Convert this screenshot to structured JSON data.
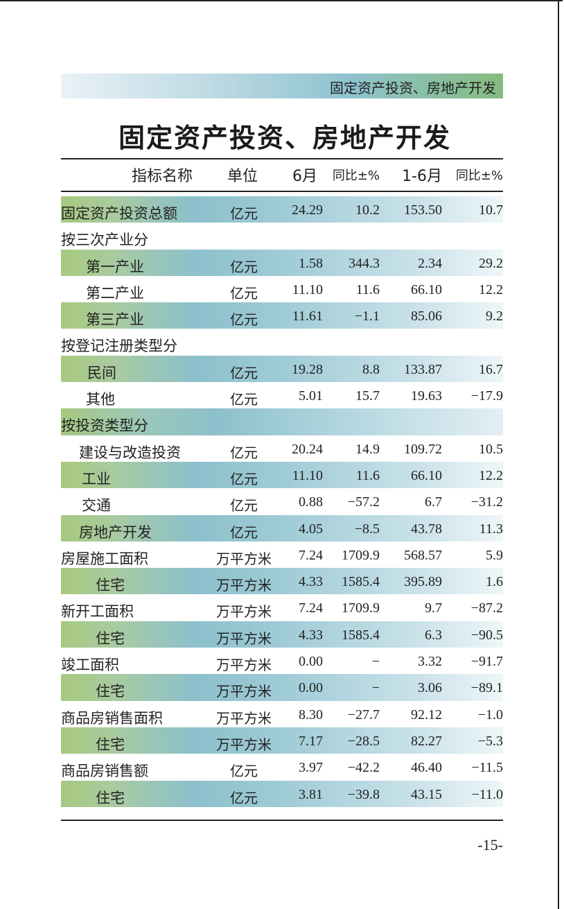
{
  "header": {
    "section": "固定资产投资、房地产开发"
  },
  "page_title": "固定资产投资、房地产开发",
  "columns": {
    "name": "指标名称",
    "unit": "单位",
    "month": "6月",
    "month_yoy": "同比±%",
    "cumulative": "1-6月",
    "cumulative_yoy": "同比±%"
  },
  "rows": [
    {
      "name": "固定资产投资总额",
      "unit": "亿元",
      "m6": "24.29",
      "yoy1": "10.2",
      "cum": "153.50",
      "yoy2": "10.7",
      "indent": 0,
      "style": "hdr",
      "shaded": true
    },
    {
      "name": "按三次产业分",
      "unit": "",
      "m6": "",
      "yoy1": "",
      "cum": "",
      "yoy2": "",
      "indent": 0,
      "style": "cat",
      "shaded": false
    },
    {
      "name": "第一产业",
      "unit": "亿元",
      "m6": "1.58",
      "yoy1": "344.3",
      "cum": "2.34",
      "yoy2": "29.2",
      "indent": 36,
      "style": "item",
      "shaded": true
    },
    {
      "name": "第二产业",
      "unit": "亿元",
      "m6": "11.10",
      "yoy1": "11.6",
      "cum": "66.10",
      "yoy2": "12.2",
      "indent": 36,
      "style": "item",
      "shaded": false
    },
    {
      "name": "第三产业",
      "unit": "亿元",
      "m6": "11.61",
      "yoy1": "−1.1",
      "cum": "85.06",
      "yoy2": "9.2",
      "indent": 36,
      "style": "item",
      "shaded": true
    },
    {
      "name": "按登记注册类型分",
      "unit": "",
      "m6": "",
      "yoy1": "",
      "cum": "",
      "yoy2": "",
      "indent": 0,
      "style": "cat",
      "shaded": false
    },
    {
      "name": "民间",
      "unit": "亿元",
      "m6": "19.28",
      "yoy1": "8.8",
      "cum": "133.87",
      "yoy2": "16.7",
      "indent": 38,
      "style": "item",
      "shaded": true
    },
    {
      "name": "其他",
      "unit": "亿元",
      "m6": "5.01",
      "yoy1": "15.7",
      "cum": "19.63",
      "yoy2": "−17.9",
      "indent": 36,
      "style": "item",
      "shaded": false
    },
    {
      "name": "按投资类型分",
      "unit": "",
      "m6": "",
      "yoy1": "",
      "cum": "",
      "yoy2": "",
      "indent": 0,
      "style": "cat",
      "shaded": true,
      "section": true
    },
    {
      "name": "建设与改造投资",
      "unit": "亿元",
      "m6": "20.24",
      "yoy1": "14.9",
      "cum": "109.72",
      "yoy2": "10.5",
      "indent": 26,
      "style": "item",
      "shaded": false
    },
    {
      "name": "工业",
      "unit": "亿元",
      "m6": "11.10",
      "yoy1": "11.6",
      "cum": "66.10",
      "yoy2": "12.2",
      "indent": 30,
      "style": "item",
      "shaded": true
    },
    {
      "name": "交通",
      "unit": "亿元",
      "m6": "0.88",
      "yoy1": "−57.2",
      "cum": "6.7",
      "yoy2": "−31.2",
      "indent": 30,
      "style": "item",
      "shaded": false
    },
    {
      "name": "房地产开发",
      "unit": "亿元",
      "m6": "4.05",
      "yoy1": "−8.5",
      "cum": "43.78",
      "yoy2": "11.3",
      "indent": 26,
      "style": "item",
      "shaded": true
    },
    {
      "name": "房屋施工面积",
      "unit": "万平方米",
      "m6": "7.24",
      "yoy1": "1709.9",
      "cum": "568.57",
      "yoy2": "5.9",
      "indent": 0,
      "style": "hdr",
      "shaded": false
    },
    {
      "name": "住宅",
      "unit": "万平方米",
      "m6": "4.33",
      "yoy1": "1585.4",
      "cum": "395.89",
      "yoy2": "1.6",
      "indent": 50,
      "style": "item",
      "shaded": true
    },
    {
      "name": "新开工面积",
      "unit": "万平方米",
      "m6": "7.24",
      "yoy1": "1709.9",
      "cum": "9.7",
      "yoy2": "−87.2",
      "indent": 0,
      "style": "hdr",
      "shaded": false
    },
    {
      "name": "住宅",
      "unit": "万平方米",
      "m6": "4.33",
      "yoy1": "1585.4",
      "cum": "6.3",
      "yoy2": "−90.5",
      "indent": 50,
      "style": "item",
      "shaded": true
    },
    {
      "name": "竣工面积",
      "unit": "万平方米",
      "m6": "0.00",
      "yoy1": "−",
      "cum": "3.32",
      "yoy2": "−91.7",
      "indent": 0,
      "style": "hdr",
      "shaded": false
    },
    {
      "name": "住宅",
      "unit": "万平方米",
      "m6": "0.00",
      "yoy1": "−",
      "cum": "3.06",
      "yoy2": "−89.1",
      "indent": 50,
      "style": "item",
      "shaded": true
    },
    {
      "name": "商品房销售面积",
      "unit": "万平方米",
      "m6": "8.30",
      "yoy1": "−27.7",
      "cum": "92.12",
      "yoy2": "−1.0",
      "indent": 0,
      "style": "hdr",
      "shaded": false
    },
    {
      "name": "住宅",
      "unit": "万平方米",
      "m6": "7.17",
      "yoy1": "−28.5",
      "cum": "82.27",
      "yoy2": "−5.3",
      "indent": 50,
      "style": "item",
      "shaded": true
    },
    {
      "name": "商品房销售额",
      "unit": "亿元",
      "m6": "3.97",
      "yoy1": "−42.2",
      "cum": "46.40",
      "yoy2": "−11.5",
      "indent": 0,
      "style": "hdr",
      "shaded": false
    },
    {
      "name": "住宅",
      "unit": "亿元",
      "m6": "3.81",
      "yoy1": "−39.8",
      "cum": "43.15",
      "yoy2": "−11.0",
      "indent": 50,
      "style": "item",
      "shaded": true
    }
  ],
  "footer": {
    "page_number": "-15-"
  }
}
